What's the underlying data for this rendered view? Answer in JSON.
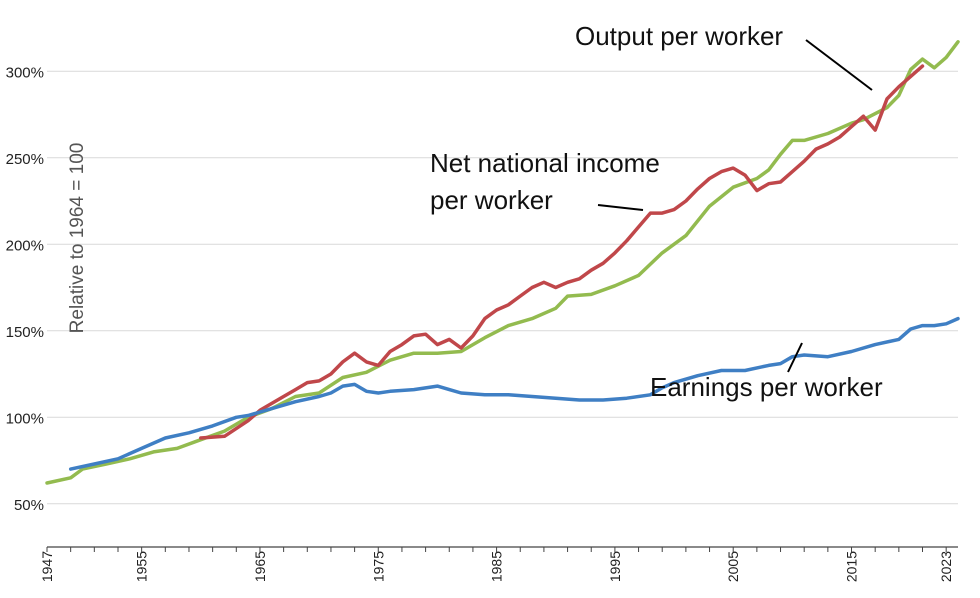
{
  "chart_data": {
    "type": "line",
    "ylabel": "Relative to 1964 = 100",
    "xlim": [
      1947,
      2024
    ],
    "ylim": [
      25,
      325
    ],
    "y_ticks": [
      {
        "value": 50,
        "label": "50%"
      },
      {
        "value": 100,
        "label": "100%"
      },
      {
        "value": 150,
        "label": "150%"
      },
      {
        "value": 200,
        "label": "200%"
      },
      {
        "value": 250,
        "label": "250%"
      },
      {
        "value": 300,
        "label": "300%"
      }
    ],
    "x_ticks": [
      {
        "value": 1947,
        "label": "1947"
      },
      {
        "value": 1955,
        "label": "1955"
      },
      {
        "value": 1965,
        "label": "1965"
      },
      {
        "value": 1975,
        "label": "1975"
      },
      {
        "value": 1985,
        "label": "1985"
      },
      {
        "value": 1995,
        "label": "1995"
      },
      {
        "value": 2005,
        "label": "2005"
      },
      {
        "value": 2015,
        "label": "2015"
      },
      {
        "value": 2023,
        "label": "2023"
      }
    ],
    "grid": "horizontal",
    "series": [
      {
        "name": "Output per worker",
        "color": "#93bb4f",
        "points": [
          [
            1947,
            62
          ],
          [
            1949,
            65
          ],
          [
            1950,
            70
          ],
          [
            1952,
            73
          ],
          [
            1954,
            76
          ],
          [
            1956,
            80
          ],
          [
            1958,
            82
          ],
          [
            1960,
            87
          ],
          [
            1962,
            92
          ],
          [
            1964,
            100
          ],
          [
            1966,
            105
          ],
          [
            1968,
            112
          ],
          [
            1970,
            114
          ],
          [
            1972,
            123
          ],
          [
            1974,
            126
          ],
          [
            1976,
            133
          ],
          [
            1978,
            137
          ],
          [
            1980,
            137
          ],
          [
            1982,
            138
          ],
          [
            1984,
            146
          ],
          [
            1986,
            153
          ],
          [
            1988,
            157
          ],
          [
            1990,
            163
          ],
          [
            1991,
            170
          ],
          [
            1993,
            171
          ],
          [
            1995,
            176
          ],
          [
            1997,
            182
          ],
          [
            1999,
            195
          ],
          [
            2001,
            205
          ],
          [
            2003,
            222
          ],
          [
            2005,
            233
          ],
          [
            2007,
            238
          ],
          [
            2008,
            243
          ],
          [
            2009,
            252
          ],
          [
            2010,
            260
          ],
          [
            2011,
            260
          ],
          [
            2013,
            264
          ],
          [
            2015,
            270
          ],
          [
            2016,
            272
          ],
          [
            2018,
            279
          ],
          [
            2019,
            286
          ],
          [
            2020,
            301
          ],
          [
            2021,
            307
          ],
          [
            2022,
            302
          ],
          [
            2023,
            308
          ],
          [
            2024,
            317
          ]
        ]
      },
      {
        "name": "Net national income per worker",
        "color": "#c0474a",
        "points": [
          [
            1960,
            88
          ],
          [
            1962,
            89
          ],
          [
            1964,
            98
          ],
          [
            1965,
            104
          ],
          [
            1966,
            108
          ],
          [
            1967,
            112
          ],
          [
            1968,
            116
          ],
          [
            1969,
            120
          ],
          [
            1970,
            121
          ],
          [
            1971,
            125
          ],
          [
            1972,
            132
          ],
          [
            1973,
            137
          ],
          [
            1974,
            132
          ],
          [
            1975,
            130
          ],
          [
            1976,
            138
          ],
          [
            1977,
            142
          ],
          [
            1978,
            147
          ],
          [
            1979,
            148
          ],
          [
            1980,
            142
          ],
          [
            1981,
            145
          ],
          [
            1982,
            140
          ],
          [
            1983,
            147
          ],
          [
            1984,
            157
          ],
          [
            1985,
            162
          ],
          [
            1986,
            165
          ],
          [
            1987,
            170
          ],
          [
            1988,
            175
          ],
          [
            1989,
            178
          ],
          [
            1990,
            175
          ],
          [
            1991,
            178
          ],
          [
            1992,
            180
          ],
          [
            1993,
            185
          ],
          [
            1994,
            189
          ],
          [
            1995,
            195
          ],
          [
            1996,
            202
          ],
          [
            1997,
            210
          ],
          [
            1998,
            218
          ],
          [
            1999,
            218
          ],
          [
            2000,
            220
          ],
          [
            2001,
            225
          ],
          [
            2002,
            232
          ],
          [
            2003,
            238
          ],
          [
            2004,
            242
          ],
          [
            2005,
            244
          ],
          [
            2006,
            240
          ],
          [
            2007,
            231
          ],
          [
            2008,
            235
          ],
          [
            2009,
            236
          ],
          [
            2010,
            242
          ],
          [
            2011,
            248
          ],
          [
            2012,
            255
          ],
          [
            2013,
            258
          ],
          [
            2014,
            262
          ],
          [
            2015,
            268
          ],
          [
            2016,
            274
          ],
          [
            2017,
            266
          ],
          [
            2018,
            284
          ],
          [
            2019,
            291
          ],
          [
            2020,
            297
          ],
          [
            2021,
            303
          ]
        ]
      },
      {
        "name": "Earnings per worker",
        "color": "#3f7fc4",
        "points": [
          [
            1949,
            70
          ],
          [
            1951,
            73
          ],
          [
            1953,
            76
          ],
          [
            1955,
            82
          ],
          [
            1957,
            88
          ],
          [
            1959,
            91
          ],
          [
            1961,
            95
          ],
          [
            1963,
            100
          ],
          [
            1964,
            101
          ],
          [
            1966,
            105
          ],
          [
            1968,
            109
          ],
          [
            1970,
            112
          ],
          [
            1971,
            114
          ],
          [
            1972,
            118
          ],
          [
            1973,
            119
          ],
          [
            1974,
            115
          ],
          [
            1975,
            114
          ],
          [
            1976,
            115
          ],
          [
            1978,
            116
          ],
          [
            1980,
            118
          ],
          [
            1981,
            116
          ],
          [
            1982,
            114
          ],
          [
            1984,
            113
          ],
          [
            1986,
            113
          ],
          [
            1988,
            112
          ],
          [
            1990,
            111
          ],
          [
            1992,
            110
          ],
          [
            1994,
            110
          ],
          [
            1996,
            111
          ],
          [
            1998,
            113
          ],
          [
            1999,
            117
          ],
          [
            2000,
            120
          ],
          [
            2002,
            124
          ],
          [
            2004,
            127
          ],
          [
            2006,
            127
          ],
          [
            2008,
            130
          ],
          [
            2009,
            131
          ],
          [
            2010,
            135
          ],
          [
            2011,
            136
          ],
          [
            2013,
            135
          ],
          [
            2015,
            138
          ],
          [
            2017,
            142
          ],
          [
            2019,
            145
          ],
          [
            2020,
            151
          ],
          [
            2021,
            153
          ],
          [
            2022,
            153
          ],
          [
            2023,
            154
          ],
          [
            2024,
            157
          ]
        ]
      }
    ],
    "annotations": [
      {
        "series": 0,
        "lines": [
          "Output per worker"
        ]
      },
      {
        "series": 1,
        "lines": [
          "Net national income",
          "per worker"
        ]
      },
      {
        "series": 2,
        "lines": [
          "Earnings per worker"
        ]
      }
    ]
  }
}
